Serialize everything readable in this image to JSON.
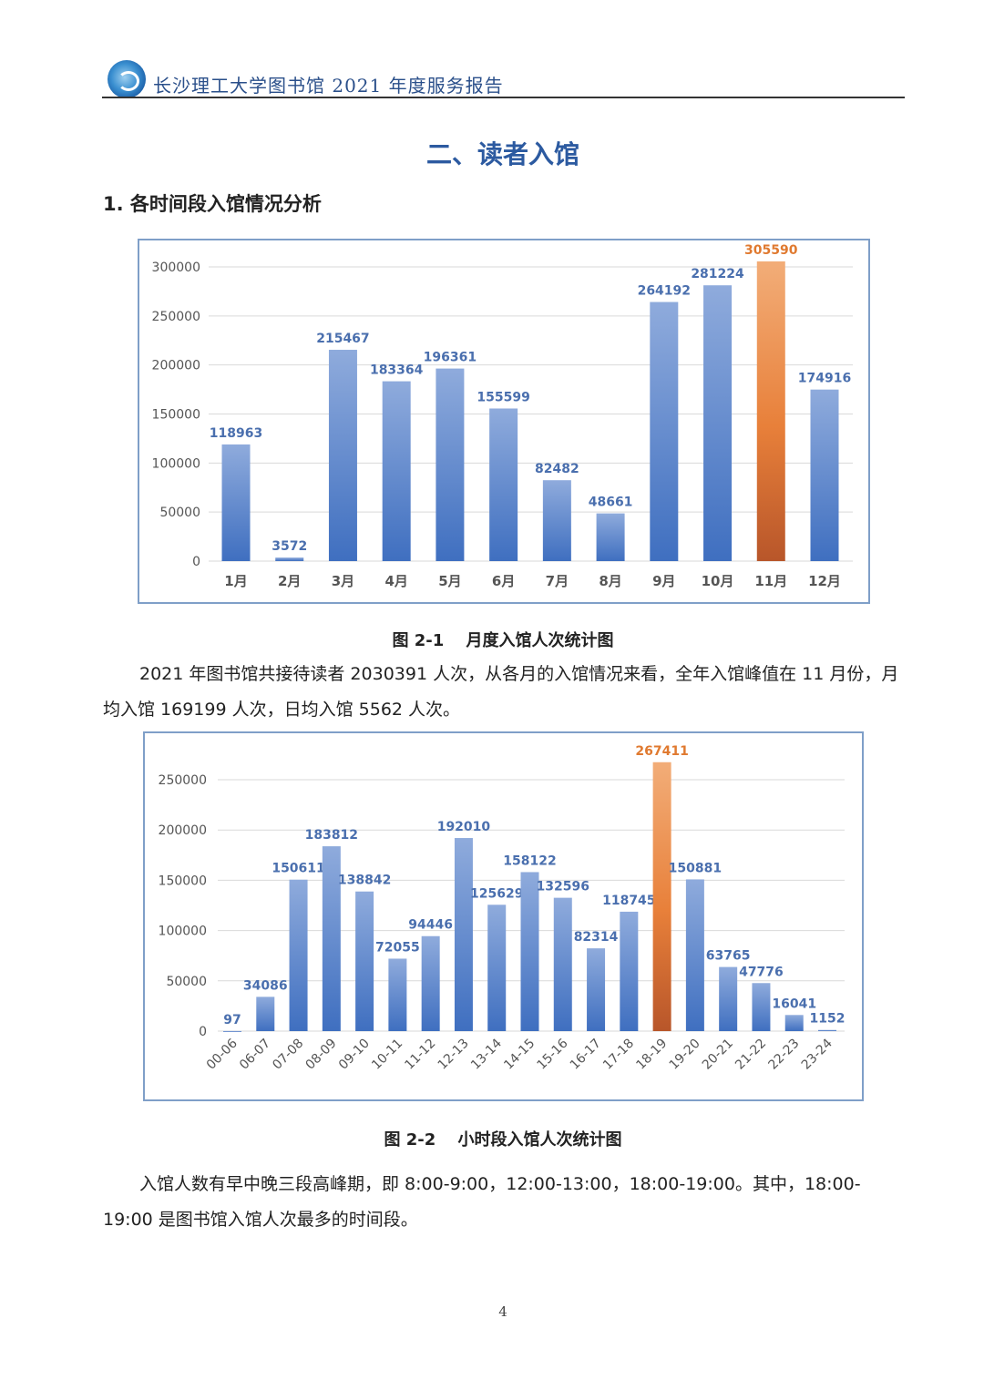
{
  "header": {
    "title": "长沙理工大学图书馆 2021 年度服务报告",
    "logo_icon": "university-seal-logo"
  },
  "section_title": "二、读者入馆",
  "subsection_title": "1. 各时间段入馆情况分析",
  "captions": [
    "图 2-1　 月度入馆人次统计图",
    "图 2-2　 小时段入馆人次统计图"
  ],
  "paragraphs": [
    "2021 年图书馆共接待读者 2030391 人次，从各月的入馆情况来看，全年入馆峰值在 11 月份，月均入馆 169199 人次，日均入馆 5562 人次。",
    "入馆人数有早中晚三段高峰期，即 8:00-9:00，12:00-13:00，18:00-19:00。其中，18:00-19:00 是图书馆入馆人次最多的时间段。"
  ],
  "page_number": "4",
  "colors": {
    "bar": "#4a78c4",
    "highlight": "#e8803a",
    "label": "#4a6fae",
    "highlight_label": "#e07a30",
    "frame": "#7f9fc8"
  },
  "chart_data": [
    {
      "type": "bar",
      "title": "",
      "xlabel": "",
      "ylabel": "",
      "categories": [
        "1月",
        "2月",
        "3月",
        "4月",
        "5月",
        "6月",
        "7月",
        "8月",
        "9月",
        "10月",
        "11月",
        "12月"
      ],
      "values": [
        118963,
        3572,
        215467,
        183364,
        196361,
        155599,
        82482,
        48661,
        264192,
        281224,
        305590,
        174916
      ],
      "highlight": "11月",
      "ylim": [
        0,
        300000
      ],
      "yticks": [
        0,
        50000,
        100000,
        150000,
        200000,
        250000,
        300000
      ],
      "grid": true,
      "data_labels": true
    },
    {
      "type": "bar",
      "title": "",
      "xlabel": "",
      "ylabel": "",
      "categories": [
        "00-06",
        "06-07",
        "07-08",
        "08-09",
        "09-10",
        "10-11",
        "11-12",
        "12-13",
        "13-14",
        "14-15",
        "15-16",
        "16-17",
        "17-18",
        "18-19",
        "19-20",
        "20-21",
        "21-22",
        "22-23",
        "23-24"
      ],
      "values": [
        97,
        34086,
        150611,
        183812,
        138842,
        72055,
        94446,
        192010,
        125629,
        158122,
        132596,
        82314,
        118745,
        267411,
        150881,
        63765,
        47776,
        16041,
        1152
      ],
      "highlight": "18-19",
      "ylim": [
        0,
        250000
      ],
      "yticks": [
        0,
        50000,
        100000,
        150000,
        200000,
        250000
      ],
      "grid": true,
      "data_labels": true
    }
  ]
}
